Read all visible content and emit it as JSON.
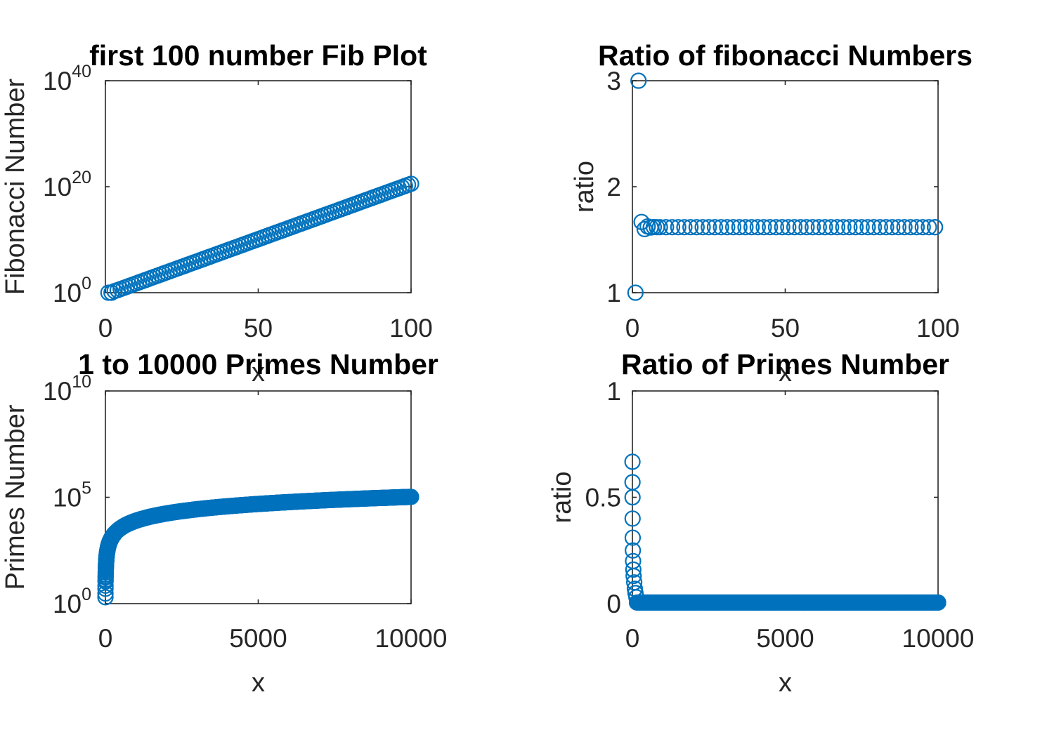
{
  "colors": {
    "marker": "#0072BD",
    "axis": "#262626",
    "title": "#000000",
    "background": "#ffffff"
  },
  "chart_data": [
    {
      "type": "scatter",
      "title": "first 100 number Fib Plot",
      "xlabel": "x",
      "ylabel": "Fibonacci Number",
      "xlim": [
        0,
        100
      ],
      "ylim": [
        1,
        1e+40
      ],
      "yscale": "log",
      "xticks": [
        0,
        50,
        100
      ],
      "xtick_labels": [
        "0",
        "50",
        "100"
      ],
      "yticks": [
        {
          "value": 1,
          "base": "10",
          "exp": "0"
        },
        {
          "value": 1e+20,
          "base": "10",
          "exp": "20"
        },
        {
          "value": 1e+40,
          "base": "10",
          "exp": "40"
        }
      ],
      "marker": "circle-open",
      "series": [
        {
          "x_start": 1,
          "x_end": 100,
          "rule": "fibonacci",
          "f1": 1,
          "f2": 1
        }
      ]
    },
    {
      "type": "scatter",
      "title": "Ratio of fibonacci Numbers",
      "xlabel": "x",
      "ylabel": "ratio",
      "xlim": [
        0,
        100
      ],
      "ylim": [
        1,
        3
      ],
      "yscale": "linear",
      "xticks": [
        0,
        50,
        100
      ],
      "xtick_labels": [
        "0",
        "50",
        "100"
      ],
      "yticks": [
        {
          "value": 1,
          "label": "1"
        },
        {
          "value": 2,
          "label": "2"
        },
        {
          "value": 3,
          "label": "3"
        }
      ],
      "marker": "circle-open",
      "series": [
        {
          "x": [
            1,
            2,
            3,
            4,
            5,
            6,
            7,
            8
          ],
          "y": [
            1.0,
            3.0,
            1.667,
            1.6,
            1.625,
            1.615,
            1.619,
            1.618
          ]
        },
        {
          "x_start": 9,
          "x_end": 99,
          "y_constant": 1.618
        }
      ]
    },
    {
      "type": "scatter",
      "title": "1 to 10000 Primes Number",
      "xlabel": "x",
      "ylabel": "Primes Number",
      "xlim": [
        0,
        10000
      ],
      "ylim": [
        1,
        10000000000.0
      ],
      "yscale": "log",
      "xticks": [
        0,
        5000,
        10000
      ],
      "xtick_labels": [
        "0",
        "5000",
        "10000"
      ],
      "yticks": [
        {
          "value": 1,
          "base": "10",
          "exp": "0"
        },
        {
          "value": 100000,
          "base": "10",
          "exp": "5"
        },
        {
          "value": 10000000000.0,
          "base": "10",
          "exp": "10"
        }
      ],
      "marker": "circle-open",
      "series": [
        {
          "x_start": 1,
          "x_end": 10000,
          "rule": "nth-prime"
        }
      ]
    },
    {
      "type": "scatter",
      "title": "Ratio of Primes Number",
      "xlabel": "x",
      "ylabel": "ratio",
      "xlim": [
        0,
        10000
      ],
      "ylim": [
        0,
        1
      ],
      "yscale": "linear",
      "xticks": [
        0,
        5000,
        10000
      ],
      "xtick_labels": [
        "0",
        "5000",
        "10000"
      ],
      "yticks": [
        {
          "value": 0,
          "label": "0"
        },
        {
          "value": 0.5,
          "label": "0.5"
        },
        {
          "value": 1,
          "label": "1"
        }
      ],
      "marker": "circle-open",
      "series": [
        {
          "x": [
            2,
            3,
            4,
            6,
            10,
            15,
            22,
            30,
            40,
            60,
            80,
            100,
            130
          ],
          "y": [
            0.667,
            0.571,
            0.5,
            0.4,
            0.31,
            0.25,
            0.2,
            0.16,
            0.13,
            0.1,
            0.07,
            0.05,
            0.03
          ]
        },
        {
          "x_start": 150,
          "x_end": 10000,
          "y_constant": 0.005
        }
      ]
    }
  ]
}
